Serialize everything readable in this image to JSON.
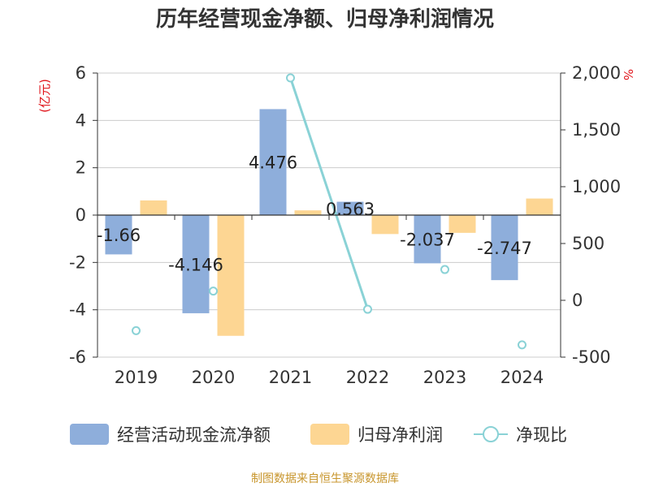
{
  "title": "历年经营现金净额、归母净利润情况",
  "source_note": "制图数据来自恒生聚源数据库",
  "colors": {
    "cashflow": "#8eaedb",
    "netprofit": "#fdd693",
    "ratio": "#8ad2d6",
    "unit": "#e0151b",
    "source": "#c8962d"
  },
  "chart_data": {
    "type": "bar",
    "title": "历年经营现金净额、归母净利润情况",
    "categories": [
      "2019",
      "2020",
      "2021",
      "2022",
      "2023",
      "2024"
    ],
    "left_axis": {
      "unit_label": "(亿元)",
      "ylim": [
        -6,
        6
      ],
      "ticks": [
        "6",
        "4",
        "2",
        "0",
        "-2",
        "-4",
        "-6"
      ],
      "tick_values": [
        6,
        4,
        2,
        0,
        -2,
        -4,
        -6
      ]
    },
    "right_axis": {
      "unit_label": "%",
      "ylim": [
        -500,
        2000
      ],
      "ticks": [
        "2,000",
        "1,500",
        "1,000",
        "500",
        "0",
        "-500"
      ],
      "tick_values": [
        2000,
        1500,
        1000,
        500,
        0,
        -500
      ]
    },
    "grid": true,
    "legend_position": "bottom",
    "series": [
      {
        "name": "经营活动现金流净额",
        "type": "bar",
        "axis": "left",
        "values": [
          -1.66,
          -4.146,
          4.476,
          0.563,
          -2.037,
          -2.747
        ],
        "labels": [
          "-1.66",
          "-4.146",
          "4.476",
          "0.563",
          "-2.037",
          "-2.747"
        ]
      },
      {
        "name": "归母净利润",
        "type": "bar",
        "axis": "left",
        "values": [
          0.62,
          -5.1,
          0.2,
          -0.8,
          -0.75,
          0.7
        ]
      },
      {
        "name": "净现比",
        "type": "line",
        "axis": "right",
        "values": [
          -267,
          81,
          1957,
          -79,
          271,
          -392
        ]
      }
    ]
  }
}
